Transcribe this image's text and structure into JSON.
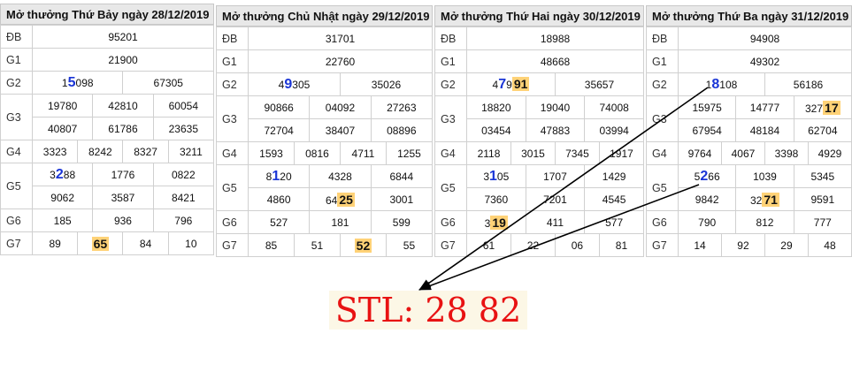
{
  "panels": [
    {
      "title": "Mở thưởng Thứ Bảy ngày 28/12/2019",
      "rows": [
        {
          "label": "ĐB",
          "lines": [
            [
              [
                {
                  "t": "95201"
                }
              ]
            ]
          ]
        },
        {
          "label": "G1",
          "lines": [
            [
              [
                {
                  "t": "21900"
                }
              ]
            ]
          ]
        },
        {
          "label": "G2",
          "lines": [
            [
              [
                {
                  "t": "1"
                },
                {
                  "t": "5",
                  "s": "big"
                },
                {
                  "t": "098"
                }
              ],
              [
                {
                  "t": "67305"
                }
              ]
            ]
          ]
        },
        {
          "label": "G3",
          "lines": [
            [
              [
                {
                  "t": "19780"
                }
              ],
              [
                {
                  "t": "42810"
                }
              ],
              [
                {
                  "t": "60054"
                }
              ]
            ],
            [
              [
                {
                  "t": "40807"
                }
              ],
              [
                {
                  "t": "61786"
                }
              ],
              [
                {
                  "t": "23635"
                }
              ]
            ]
          ]
        },
        {
          "label": "G4",
          "lines": [
            [
              [
                {
                  "t": "3323"
                }
              ],
              [
                {
                  "t": "8242"
                }
              ],
              [
                {
                  "t": "8327"
                }
              ],
              [
                {
                  "t": "3211"
                }
              ]
            ]
          ]
        },
        {
          "label": "G5",
          "lines": [
            [
              [
                {
                  "t": "3"
                },
                {
                  "t": "2",
                  "s": "big"
                },
                {
                  "t": "88"
                }
              ],
              [
                {
                  "t": "1776"
                }
              ],
              [
                {
                  "t": "0822"
                }
              ]
            ],
            [
              [
                {
                  "t": "9062"
                }
              ],
              [
                {
                  "t": "3587"
                }
              ],
              [
                {
                  "t": "8421"
                }
              ]
            ]
          ]
        },
        {
          "label": "G6",
          "lines": [
            [
              [
                {
                  "t": "185"
                }
              ],
              [
                {
                  "t": "936"
                }
              ],
              [
                {
                  "t": "796"
                }
              ]
            ]
          ]
        },
        {
          "label": "G7",
          "lines": [
            [
              [
                {
                  "t": "89"
                }
              ],
              [
                {
                  "t": "65",
                  "s": "hl"
                }
              ],
              [
                {
                  "t": "84"
                }
              ],
              [
                {
                  "t": "10"
                }
              ]
            ]
          ]
        }
      ]
    },
    {
      "title": "Mở thưởng Chủ Nhật ngày 29/12/2019",
      "rows": [
        {
          "label": "ĐB",
          "lines": [
            [
              [
                {
                  "t": "31701"
                }
              ]
            ]
          ]
        },
        {
          "label": "G1",
          "lines": [
            [
              [
                {
                  "t": "22760"
                }
              ]
            ]
          ]
        },
        {
          "label": "G2",
          "lines": [
            [
              [
                {
                  "t": "4"
                },
                {
                  "t": "9",
                  "s": "big"
                },
                {
                  "t": "305"
                }
              ],
              [
                {
                  "t": "35026"
                }
              ]
            ]
          ]
        },
        {
          "label": "G3",
          "lines": [
            [
              [
                {
                  "t": "90866"
                }
              ],
              [
                {
                  "t": "04092"
                }
              ],
              [
                {
                  "t": "27263"
                }
              ]
            ],
            [
              [
                {
                  "t": "72704"
                }
              ],
              [
                {
                  "t": "38407"
                }
              ],
              [
                {
                  "t": "08896"
                }
              ]
            ]
          ]
        },
        {
          "label": "G4",
          "lines": [
            [
              [
                {
                  "t": "1593"
                }
              ],
              [
                {
                  "t": "0816"
                }
              ],
              [
                {
                  "t": "4711"
                }
              ],
              [
                {
                  "t": "1255"
                }
              ]
            ]
          ]
        },
        {
          "label": "G5",
          "lines": [
            [
              [
                {
                  "t": "8"
                },
                {
                  "t": "1",
                  "s": "big"
                },
                {
                  "t": "20"
                }
              ],
              [
                {
                  "t": "4328"
                }
              ],
              [
                {
                  "t": "6844"
                }
              ]
            ],
            [
              [
                {
                  "t": "4860"
                }
              ],
              [
                {
                  "t": "64"
                },
                {
                  "t": "25",
                  "s": "hl"
                }
              ],
              [
                {
                  "t": "3001"
                }
              ]
            ]
          ]
        },
        {
          "label": "G6",
          "lines": [
            [
              [
                {
                  "t": "527"
                }
              ],
              [
                {
                  "t": "181"
                }
              ],
              [
                {
                  "t": "599"
                }
              ]
            ]
          ]
        },
        {
          "label": "G7",
          "lines": [
            [
              [
                {
                  "t": "85"
                }
              ],
              [
                {
                  "t": "51"
                }
              ],
              [
                {
                  "t": "52",
                  "s": "hl"
                }
              ],
              [
                {
                  "t": "55"
                }
              ]
            ]
          ]
        }
      ]
    },
    {
      "title": "Mở thưởng Thứ Hai ngày 30/12/2019",
      "rows": [
        {
          "label": "ĐB",
          "lines": [
            [
              [
                {
                  "t": "18988"
                }
              ]
            ]
          ]
        },
        {
          "label": "G1",
          "lines": [
            [
              [
                {
                  "t": "48668"
                }
              ]
            ]
          ]
        },
        {
          "label": "G2",
          "lines": [
            [
              [
                {
                  "t": "4"
                },
                {
                  "t": "7",
                  "s": "big"
                },
                {
                  "t": "9"
                },
                {
                  "t": "91",
                  "s": "hl"
                }
              ],
              [
                {
                  "t": "35657"
                }
              ]
            ]
          ]
        },
        {
          "label": "G3",
          "lines": [
            [
              [
                {
                  "t": "18820"
                }
              ],
              [
                {
                  "t": "19040"
                }
              ],
              [
                {
                  "t": "74008"
                }
              ]
            ],
            [
              [
                {
                  "t": "03454"
                }
              ],
              [
                {
                  "t": "47883"
                }
              ],
              [
                {
                  "t": "03994"
                }
              ]
            ]
          ]
        },
        {
          "label": "G4",
          "lines": [
            [
              [
                {
                  "t": "2118"
                }
              ],
              [
                {
                  "t": "3015"
                }
              ],
              [
                {
                  "t": "7345"
                }
              ],
              [
                {
                  "t": "1917"
                }
              ]
            ]
          ]
        },
        {
          "label": "G5",
          "lines": [
            [
              [
                {
                  "t": "3"
                },
                {
                  "t": "1",
                  "s": "big"
                },
                {
                  "t": "05"
                }
              ],
              [
                {
                  "t": "1707"
                }
              ],
              [
                {
                  "t": "1429"
                }
              ]
            ],
            [
              [
                {
                  "t": "7360"
                }
              ],
              [
                {
                  "t": "7201"
                }
              ],
              [
                {
                  "t": "4545"
                }
              ]
            ]
          ]
        },
        {
          "label": "G6",
          "lines": [
            [
              [
                {
                  "t": "3"
                },
                {
                  "t": "19",
                  "s": "hl"
                }
              ],
              [
                {
                  "t": "411"
                }
              ],
              [
                {
                  "t": "577"
                }
              ]
            ]
          ]
        },
        {
          "label": "G7",
          "lines": [
            [
              [
                {
                  "t": "61"
                }
              ],
              [
                {
                  "t": "22"
                }
              ],
              [
                {
                  "t": "06"
                }
              ],
              [
                {
                  "t": "81"
                }
              ]
            ]
          ]
        }
      ]
    },
    {
      "title": "Mở thưởng Thứ Ba ngày 31/12/2019",
      "rows": [
        {
          "label": "ĐB",
          "lines": [
            [
              [
                {
                  "t": "94908"
                }
              ]
            ]
          ]
        },
        {
          "label": "G1",
          "lines": [
            [
              [
                {
                  "t": "49302"
                }
              ]
            ]
          ]
        },
        {
          "label": "G2",
          "lines": [
            [
              [
                {
                  "t": "1"
                },
                {
                  "t": "8",
                  "s": "big"
                },
                {
                  "t": "108"
                }
              ],
              [
                {
                  "t": "56186"
                }
              ]
            ]
          ]
        },
        {
          "label": "G3",
          "lines": [
            [
              [
                {
                  "t": "15975"
                }
              ],
              [
                {
                  "t": "14777"
                }
              ],
              [
                {
                  "t": "327"
                },
                {
                  "t": "17",
                  "s": "hl"
                }
              ]
            ],
            [
              [
                {
                  "t": "67954"
                }
              ],
              [
                {
                  "t": "48184"
                }
              ],
              [
                {
                  "t": "62704"
                }
              ]
            ]
          ]
        },
        {
          "label": "G4",
          "lines": [
            [
              [
                {
                  "t": "9764"
                }
              ],
              [
                {
                  "t": "4067"
                }
              ],
              [
                {
                  "t": "3398"
                }
              ],
              [
                {
                  "t": "4929"
                }
              ]
            ]
          ]
        },
        {
          "label": "G5",
          "lines": [
            [
              [
                {
                  "t": "5"
                },
                {
                  "t": "2",
                  "s": "big"
                },
                {
                  "t": "66"
                }
              ],
              [
                {
                  "t": "1039"
                }
              ],
              [
                {
                  "t": "5345"
                }
              ]
            ],
            [
              [
                {
                  "t": "9842"
                }
              ],
              [
                {
                  "t": "32"
                },
                {
                  "t": "71",
                  "s": "hl"
                }
              ],
              [
                {
                  "t": "9591"
                }
              ]
            ]
          ]
        },
        {
          "label": "G6",
          "lines": [
            [
              [
                {
                  "t": "790"
                }
              ],
              [
                {
                  "t": "812"
                }
              ],
              [
                {
                  "t": "777"
                }
              ]
            ]
          ]
        },
        {
          "label": "G7",
          "lines": [
            [
              [
                {
                  "t": "14"
                }
              ],
              [
                {
                  "t": "92"
                }
              ],
              [
                {
                  "t": "29"
                }
              ],
              [
                {
                  "t": "48"
                }
              ]
            ]
          ]
        }
      ]
    }
  ],
  "result": {
    "text": "STL: 28 82",
    "color": "#e81212",
    "background": "#fcf7e6"
  },
  "colors": {
    "big_digit": "#1a35d6",
    "highlight": "#ffd277",
    "arrow": "#000000"
  }
}
